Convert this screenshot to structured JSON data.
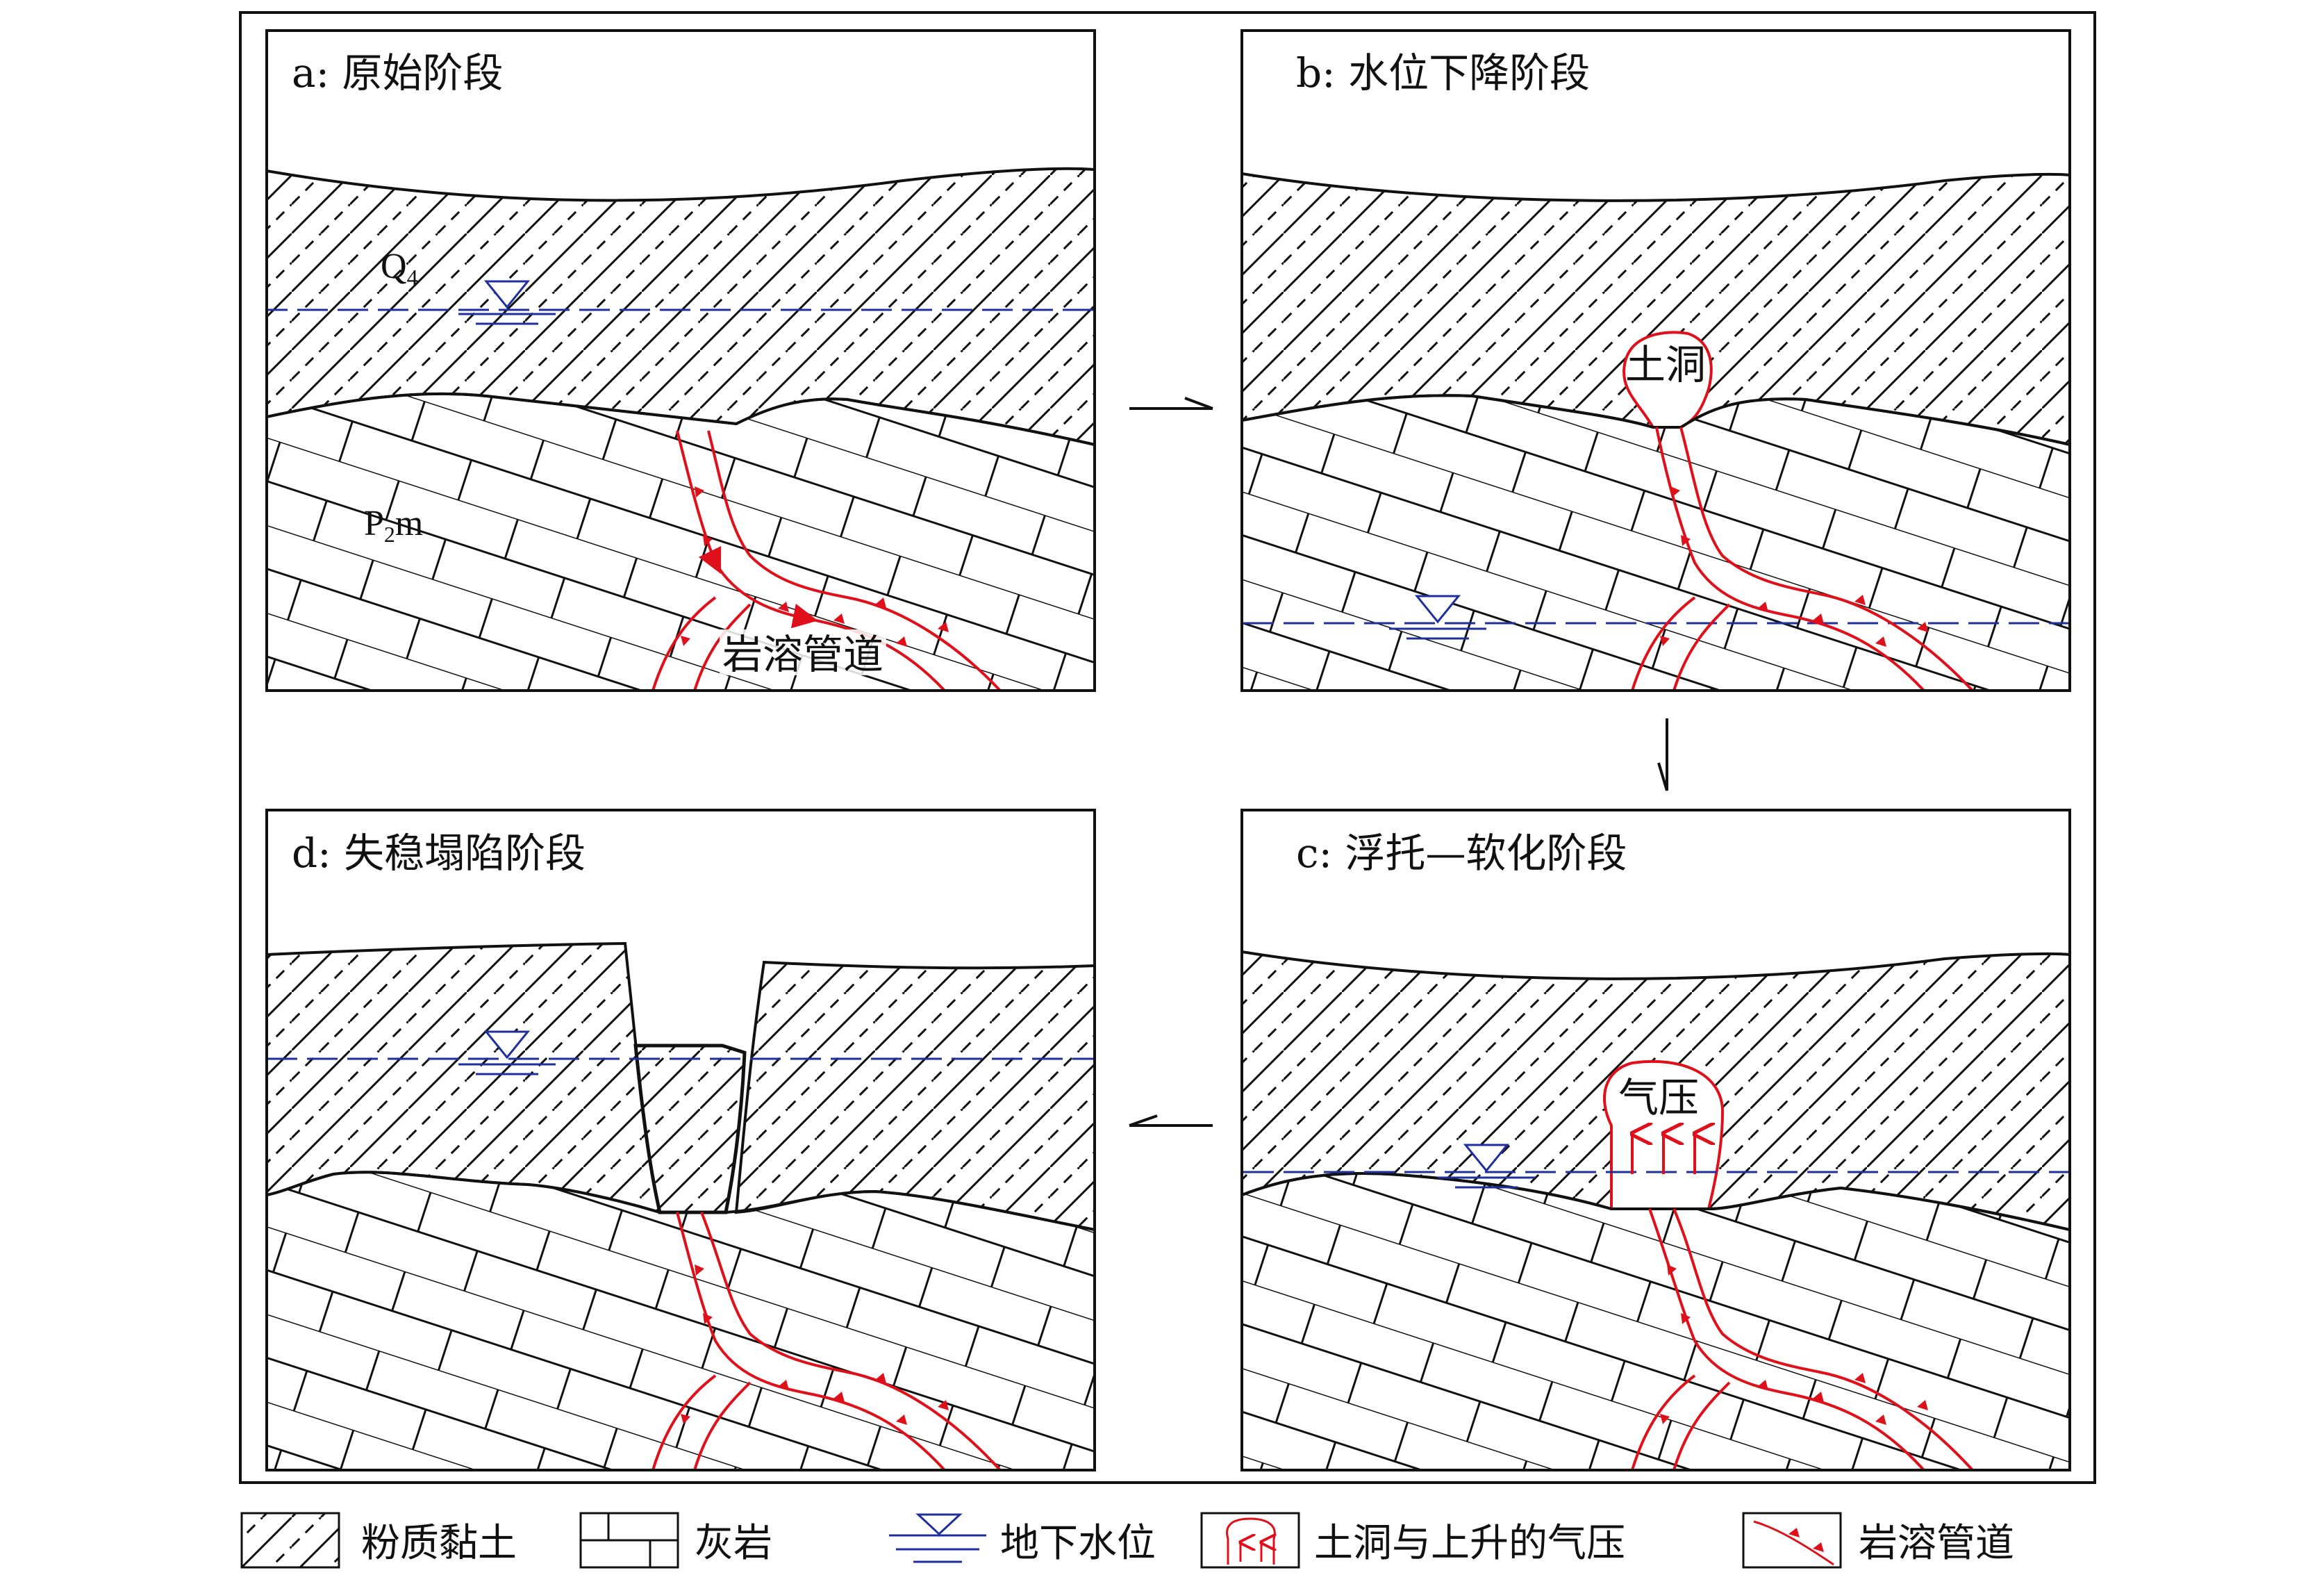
{
  "panels": {
    "a": {
      "title": "a: 原始阶段",
      "unit_q": "Q",
      "unit_q_sub": "4",
      "unit_p": "P",
      "unit_p_sub": "2",
      "unit_p_suffix": "m",
      "conduit": "岩溶管道"
    },
    "b": {
      "title": "b: 水位下降阶段",
      "cave": "土洞"
    },
    "c": {
      "title": "c: 浮托—软化阶段",
      "pressure": "气压"
    },
    "d": {
      "title": "d: 失稳塌陷阶段"
    }
  },
  "legend": {
    "silty_clay": "粉质黏土",
    "limestone": "灰岩",
    "water_table": "地下水位",
    "soil_cave": "土洞与上升的气压",
    "karst_conduit": "岩溶管道"
  },
  "colors": {
    "water": "#1f2f9e",
    "conduit": "#e0101a",
    "line": "#111111"
  }
}
